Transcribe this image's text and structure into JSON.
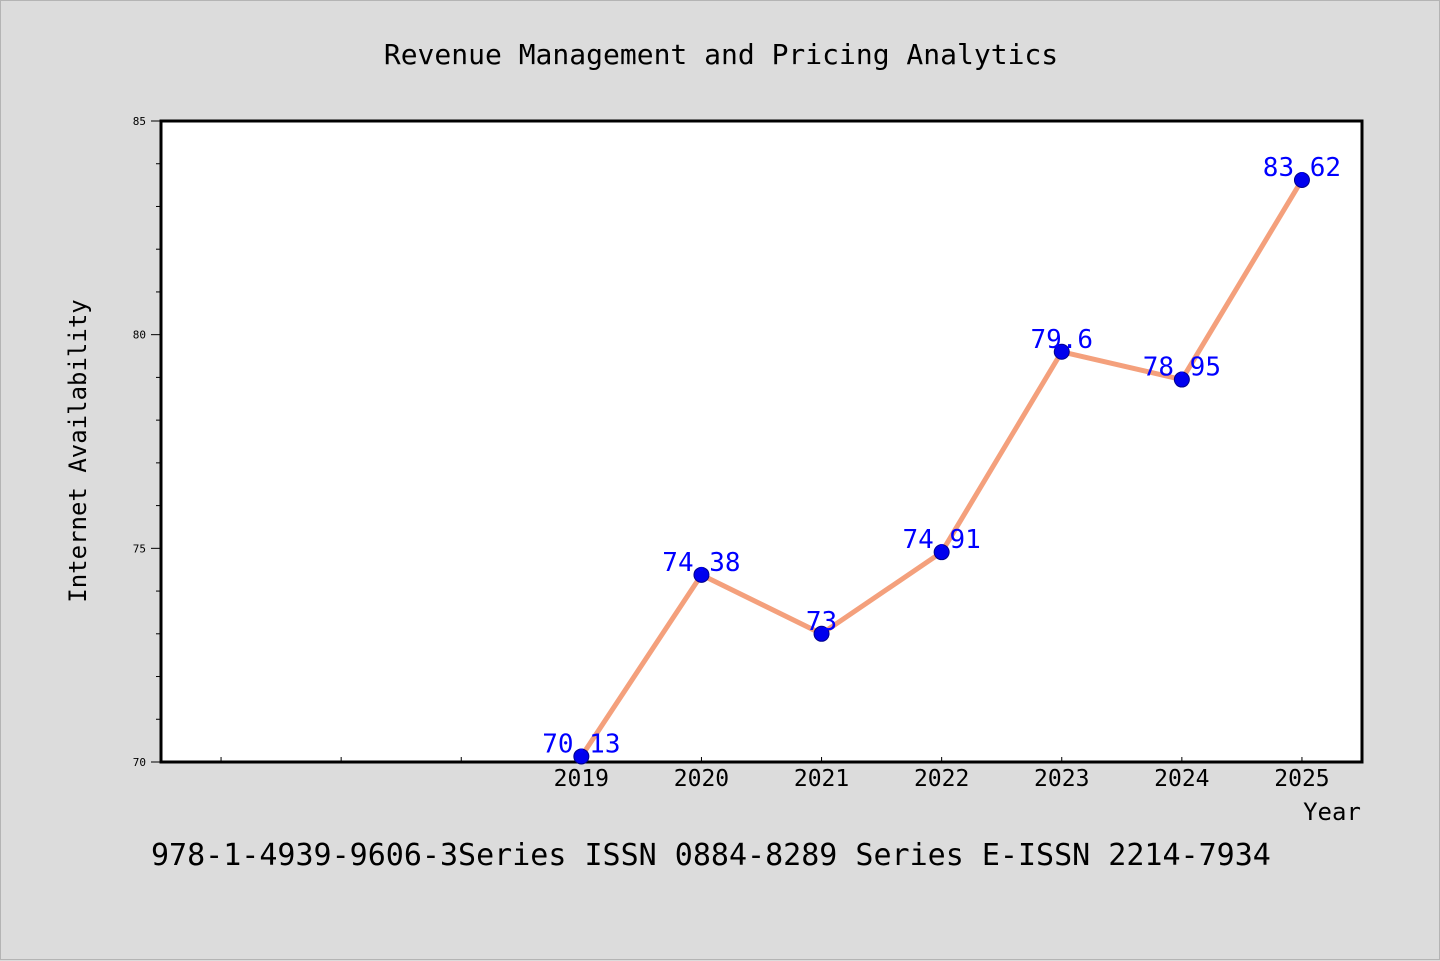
{
  "chart_data": {
    "type": "line",
    "title": "Revenue Management and Pricing Analytics",
    "xlabel": "Year",
    "ylabel": "Internet Availability",
    "x": [
      "2019",
      "2020",
      "2021",
      "2022",
      "2023",
      "2024",
      "2025"
    ],
    "series": [
      {
        "values": [
          70.13,
          74.38,
          73,
          74.91,
          79.6,
          78.95,
          83.62
        ],
        "data_labels": [
          "70.13",
          "74.38",
          "73",
          "74.91",
          "79.6",
          "78.95",
          "83.62"
        ],
        "line_color": "#f4a07c",
        "marker_color": "#0000ee",
        "label_color": "#0000ff"
      }
    ],
    "xlim": [
      2015.5,
      2025.5
    ],
    "ylim": [
      70,
      85
    ],
    "yticks": [
      "70",
      "75",
      "80",
      "85"
    ],
    "grid": false,
    "legend": "none"
  },
  "footer": {
    "text": "978-1-4939-9606-3Series ISSN 0884-8289 Series E-ISSN 2214-7934"
  },
  "colors": {
    "background": "#dcdcdc",
    "plot_background": "#ffffff"
  }
}
